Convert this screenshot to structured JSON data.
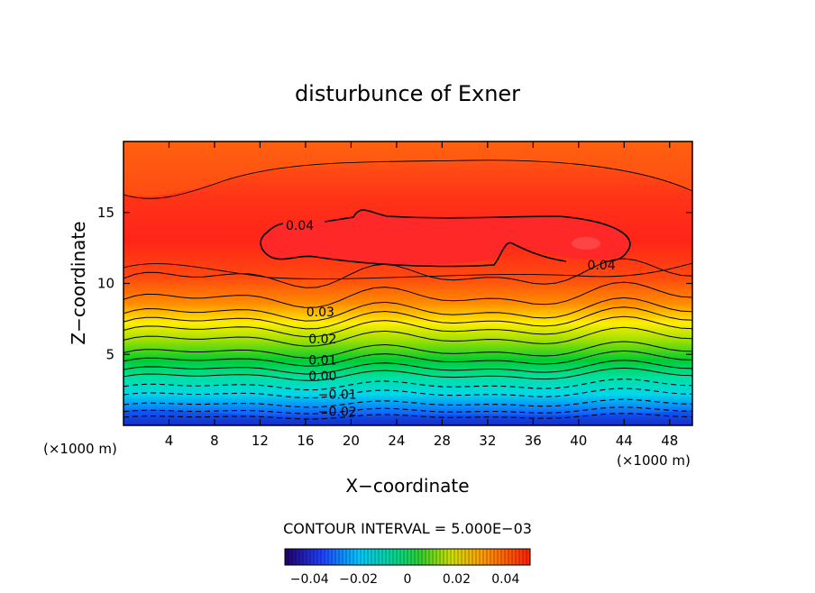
{
  "chart_data": {
    "type": "heatmap",
    "title": "disturbunce of Exner",
    "xlabel": "X−coordinate",
    "ylabel": "Z−coordinate",
    "x_unit_left": "(×1000 m)",
    "x_unit_right": "(×1000 m)",
    "xlim": [
      0,
      50
    ],
    "ylim": [
      0,
      20
    ],
    "x_ticks": [
      "4",
      "8",
      "12",
      "16",
      "20",
      "24",
      "28",
      "32",
      "36",
      "40",
      "44",
      "48"
    ],
    "x_tick_values": [
      4,
      8,
      12,
      16,
      20,
      24,
      28,
      32,
      36,
      40,
      44,
      48
    ],
    "y_ticks": [
      "5",
      "10",
      "15"
    ],
    "y_tick_values": [
      5,
      10,
      15
    ],
    "contour_interval_text": "CONTOUR INTERVAL = 5.000E−03",
    "contour_labels": [
      {
        "text": "0.04",
        "x": 15.5,
        "z": 14.1
      },
      {
        "text": "0.04",
        "x": 42.0,
        "z": 11.3
      },
      {
        "text": "0.03",
        "x": 17.3,
        "z": 8.0
      },
      {
        "text": "0.02",
        "x": 17.5,
        "z": 6.1
      },
      {
        "text": "0.01",
        "x": 17.5,
        "z": 4.6
      },
      {
        "text": "0.00",
        "x": 17.5,
        "z": 3.5
      },
      {
        "text": "−0.01",
        "x": 18.8,
        "z": 2.2
      },
      {
        "text": "−0.02",
        "x": 18.8,
        "z": 1.0
      }
    ],
    "field_levels": [
      {
        "z": 0.0,
        "value": -0.025
      },
      {
        "z": 1.0,
        "value": -0.02
      },
      {
        "z": 2.2,
        "value": -0.01
      },
      {
        "z": 3.5,
        "value": 0.0
      },
      {
        "z": 4.6,
        "value": 0.01
      },
      {
        "z": 6.1,
        "value": 0.02
      },
      {
        "z": 8.0,
        "value": 0.03
      },
      {
        "z": 10.5,
        "value": 0.037
      },
      {
        "z": 13.0,
        "value": 0.0415
      },
      {
        "z": 16.0,
        "value": 0.036
      },
      {
        "z": 20.0,
        "value": 0.03
      }
    ],
    "colorbar": {
      "ticks": [
        "−0.04",
        "−0.02",
        "0",
        "0.02",
        "0.04"
      ],
      "tick_values": [
        -0.04,
        -0.02,
        0,
        0.02,
        0.04
      ],
      "range": [
        -0.05,
        0.05
      ]
    },
    "colors": {
      "dark_blue": "#1a1aa8",
      "blue": "#1060ff",
      "cyan": "#00d8e8",
      "teal": "#00e0a0",
      "green": "#00cc30",
      "lime": "#a0e000",
      "yellow": "#ffee00",
      "orange": "#ff8c00",
      "red_orange": "#ff4a10",
      "red": "#ff2418",
      "bright_red": "#ff1818"
    }
  }
}
